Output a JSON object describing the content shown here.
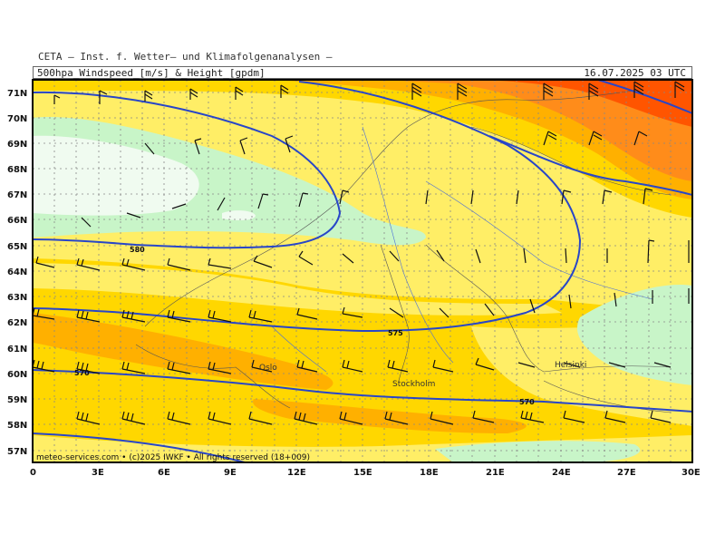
{
  "header": {
    "institute": "CETA — Inst. f. Wetter— und Klimafolgenanalysen —",
    "title": "500hpa_Windspeed_[m/s]_&_Height_[gpdm]",
    "datetime": "16.07.2025 03 UTC"
  },
  "map": {
    "lat_labels": [
      "71N",
      "70N",
      "69N",
      "68N",
      "67N",
      "66N",
      "65N",
      "64N",
      "63N",
      "62N",
      "61N",
      "60N",
      "59N",
      "58N",
      "57N"
    ],
    "lon_labels": [
      "0",
      "3E",
      "6E",
      "9E",
      "12E",
      "15E",
      "18E",
      "21E",
      "24E",
      "27E",
      "30E"
    ],
    "cities": [
      {
        "name": "Stockholm"
      },
      {
        "name": "Helsinki"
      },
      {
        "name": "Oslo"
      }
    ],
    "contour_labels": [
      "580",
      "575",
      "570",
      "570"
    ],
    "footer": "meteo-services.com • (c)2025 IWKF • All rights reserved (18+009)",
    "colors": {
      "calm_white": "#f0fbf0",
      "calm_green": "#c8f5c8",
      "light_yellow": "#ffee66",
      "yellow": "#ffd700",
      "orange_light": "#ffb000",
      "orange": "#ff8c1a",
      "orange_dark": "#ff5500",
      "contour": "#2846c8"
    }
  }
}
